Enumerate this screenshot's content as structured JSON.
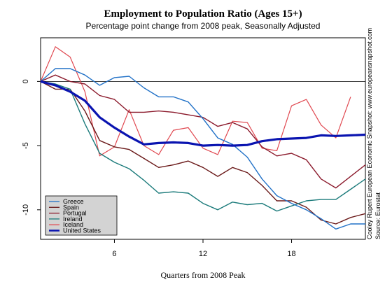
{
  "chart_data": {
    "type": "line",
    "title": "Employment to Population Ratio (Ages 15+)",
    "subtitle": "Percentage point change from 2008 peak, Seasonally Adjusted",
    "xlabel": "Quarters from 2008 Peak",
    "ylabel": "",
    "xlim": [
      1,
      23
    ],
    "ylim": [
      -12.3,
      3.4
    ],
    "xticks": [
      6,
      12,
      18
    ],
    "yticks": [
      0,
      -5,
      -10
    ],
    "reference_line": 0,
    "legend": "bottom-left",
    "grid": false,
    "x": [
      1,
      2,
      3,
      4,
      5,
      6,
      7,
      8,
      9,
      10,
      11,
      12,
      13,
      14,
      15,
      16,
      17,
      18,
      19,
      20,
      21,
      22,
      23
    ],
    "series": [
      {
        "name": "Greece",
        "color": "#2171c7",
        "width": 1.4,
        "values": [
          0,
          1.0,
          1.0,
          0.5,
          -0.3,
          0.3,
          0.4,
          -0.5,
          -1.2,
          -1.2,
          -1.6,
          -2.9,
          -4.4,
          -4.9,
          -5.9,
          -7.6,
          -8.9,
          -9.5,
          -10.0,
          -10.7,
          -11.5,
          -11.1,
          -11.1
        ]
      },
      {
        "name": "Spain",
        "color": "#6b1a1a",
        "width": 1.4,
        "values": [
          0,
          -0.6,
          -0.6,
          -2.3,
          -4.6,
          -5.1,
          -5.3,
          -6.0,
          -6.7,
          -6.5,
          -6.2,
          -6.7,
          -7.4,
          -6.7,
          -7.1,
          -8.1,
          -9.3,
          -9.3,
          -9.8,
          -10.8,
          -11.1,
          -10.6,
          -10.3
        ]
      },
      {
        "name": "Portugal",
        "color": "#8b1a2c",
        "width": 1.4,
        "values": [
          0,
          0.5,
          0,
          -0.2,
          -1.1,
          -1.4,
          -2.4,
          -2.4,
          -2.3,
          -2.4,
          -2.6,
          -2.8,
          -3.5,
          -3.2,
          -3.7,
          -5.1,
          -5.8,
          -5.6,
          -6.1,
          -7.6,
          -8.3,
          -7.4,
          -6.5
        ]
      },
      {
        "name": "Ireland",
        "color": "#1a7a7a",
        "width": 1.4,
        "values": [
          0,
          -0.2,
          -0.6,
          -3.3,
          -5.6,
          -6.3,
          -6.8,
          -7.7,
          -8.7,
          -8.6,
          -8.7,
          -9.5,
          -10.0,
          -9.4,
          -9.6,
          -9.5,
          -10.1,
          -9.7,
          -9.3,
          -9.2,
          -9.2,
          -8.4,
          -7.6
        ]
      },
      {
        "name": "Iceland",
        "color": "#e04850",
        "width": 1.2,
        "values": [
          0,
          2.7,
          1.9,
          -0.8,
          -5.8,
          -5.1,
          -2.2,
          -5.0,
          -5.7,
          -3.8,
          -3.6,
          -5.2,
          -5.7,
          -3.1,
          -3.2,
          -5.2,
          -5.4,
          -1.9,
          -1.4,
          -3.4,
          -4.4,
          -1.2,
          null
        ]
      },
      {
        "name": "United States",
        "color": "#0a14b0",
        "width": 3.2,
        "values": [
          0,
          -0.3,
          -0.8,
          -1.5,
          -2.8,
          -3.6,
          -4.3,
          -4.9,
          -4.8,
          -4.75,
          -4.8,
          -5.0,
          -4.95,
          -5.0,
          -4.95,
          -4.65,
          -4.5,
          -4.45,
          -4.4,
          -4.2,
          -4.25,
          -4.2,
          -4.15
        ]
      }
    ],
    "side_text": [
      "Cooley Rupert European Economic Snapshot: www.europeansnapshot.com",
      "Source: Eurostat"
    ]
  },
  "page": {
    "background": "#ffffff",
    "legend_background": "#d3d3d3"
  }
}
